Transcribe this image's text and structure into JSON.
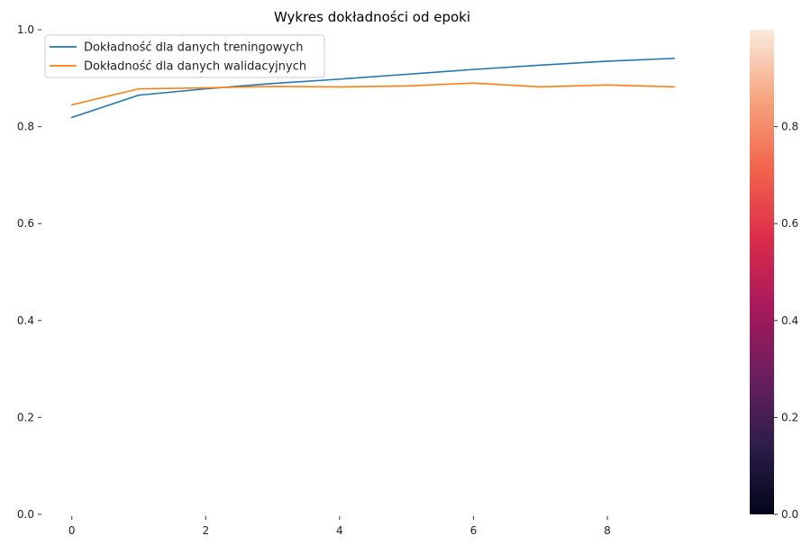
{
  "chart_data": {
    "type": "line",
    "title": "Wykres dokładności od epoki",
    "xlabel": "",
    "ylabel": "",
    "x": [
      0,
      1,
      2,
      3,
      4,
      5,
      6,
      7,
      8,
      9
    ],
    "xlim": [
      -0.4,
      9.4
    ],
    "ylim": [
      0,
      1.0
    ],
    "x_ticks": [
      0,
      2,
      4,
      6,
      8
    ],
    "y_ticks": [
      0.0,
      0.2,
      0.4,
      0.6,
      0.8,
      1.0
    ],
    "x_tick_labels": [
      "0",
      "2",
      "4",
      "6",
      "8"
    ],
    "y_tick_labels": [
      "0.0",
      "0.2",
      "0.4",
      "0.6",
      "0.8",
      "1.0"
    ],
    "grid": false,
    "legend_position": "top-left",
    "series": [
      {
        "name": "Dokładność dla danych treningowych",
        "color": "#1f77b4",
        "values": [
          0.819,
          0.865,
          0.878,
          0.889,
          0.898,
          0.908,
          0.918,
          0.927,
          0.935,
          0.941
        ]
      },
      {
        "name": "Dokładność dla danych walidacyjnych",
        "color": "#ff7f0e",
        "values": [
          0.845,
          0.878,
          0.88,
          0.883,
          0.882,
          0.884,
          0.89,
          0.882,
          0.886,
          0.882
        ]
      }
    ],
    "colorbar": {
      "range": [
        0,
        1.0
      ],
      "ticks": [
        0.0,
        0.2,
        0.4,
        0.6,
        0.8
      ],
      "tick_labels": [
        "0.0",
        "0.2",
        "0.4",
        "0.6",
        "0.8"
      ],
      "colormap": "rocket",
      "stops": [
        "#03051a",
        "#2c1d4a",
        "#6b1e5e",
        "#a8195b",
        "#dd2d4a",
        "#f2654c",
        "#f6a47e",
        "#faebdd"
      ]
    }
  }
}
